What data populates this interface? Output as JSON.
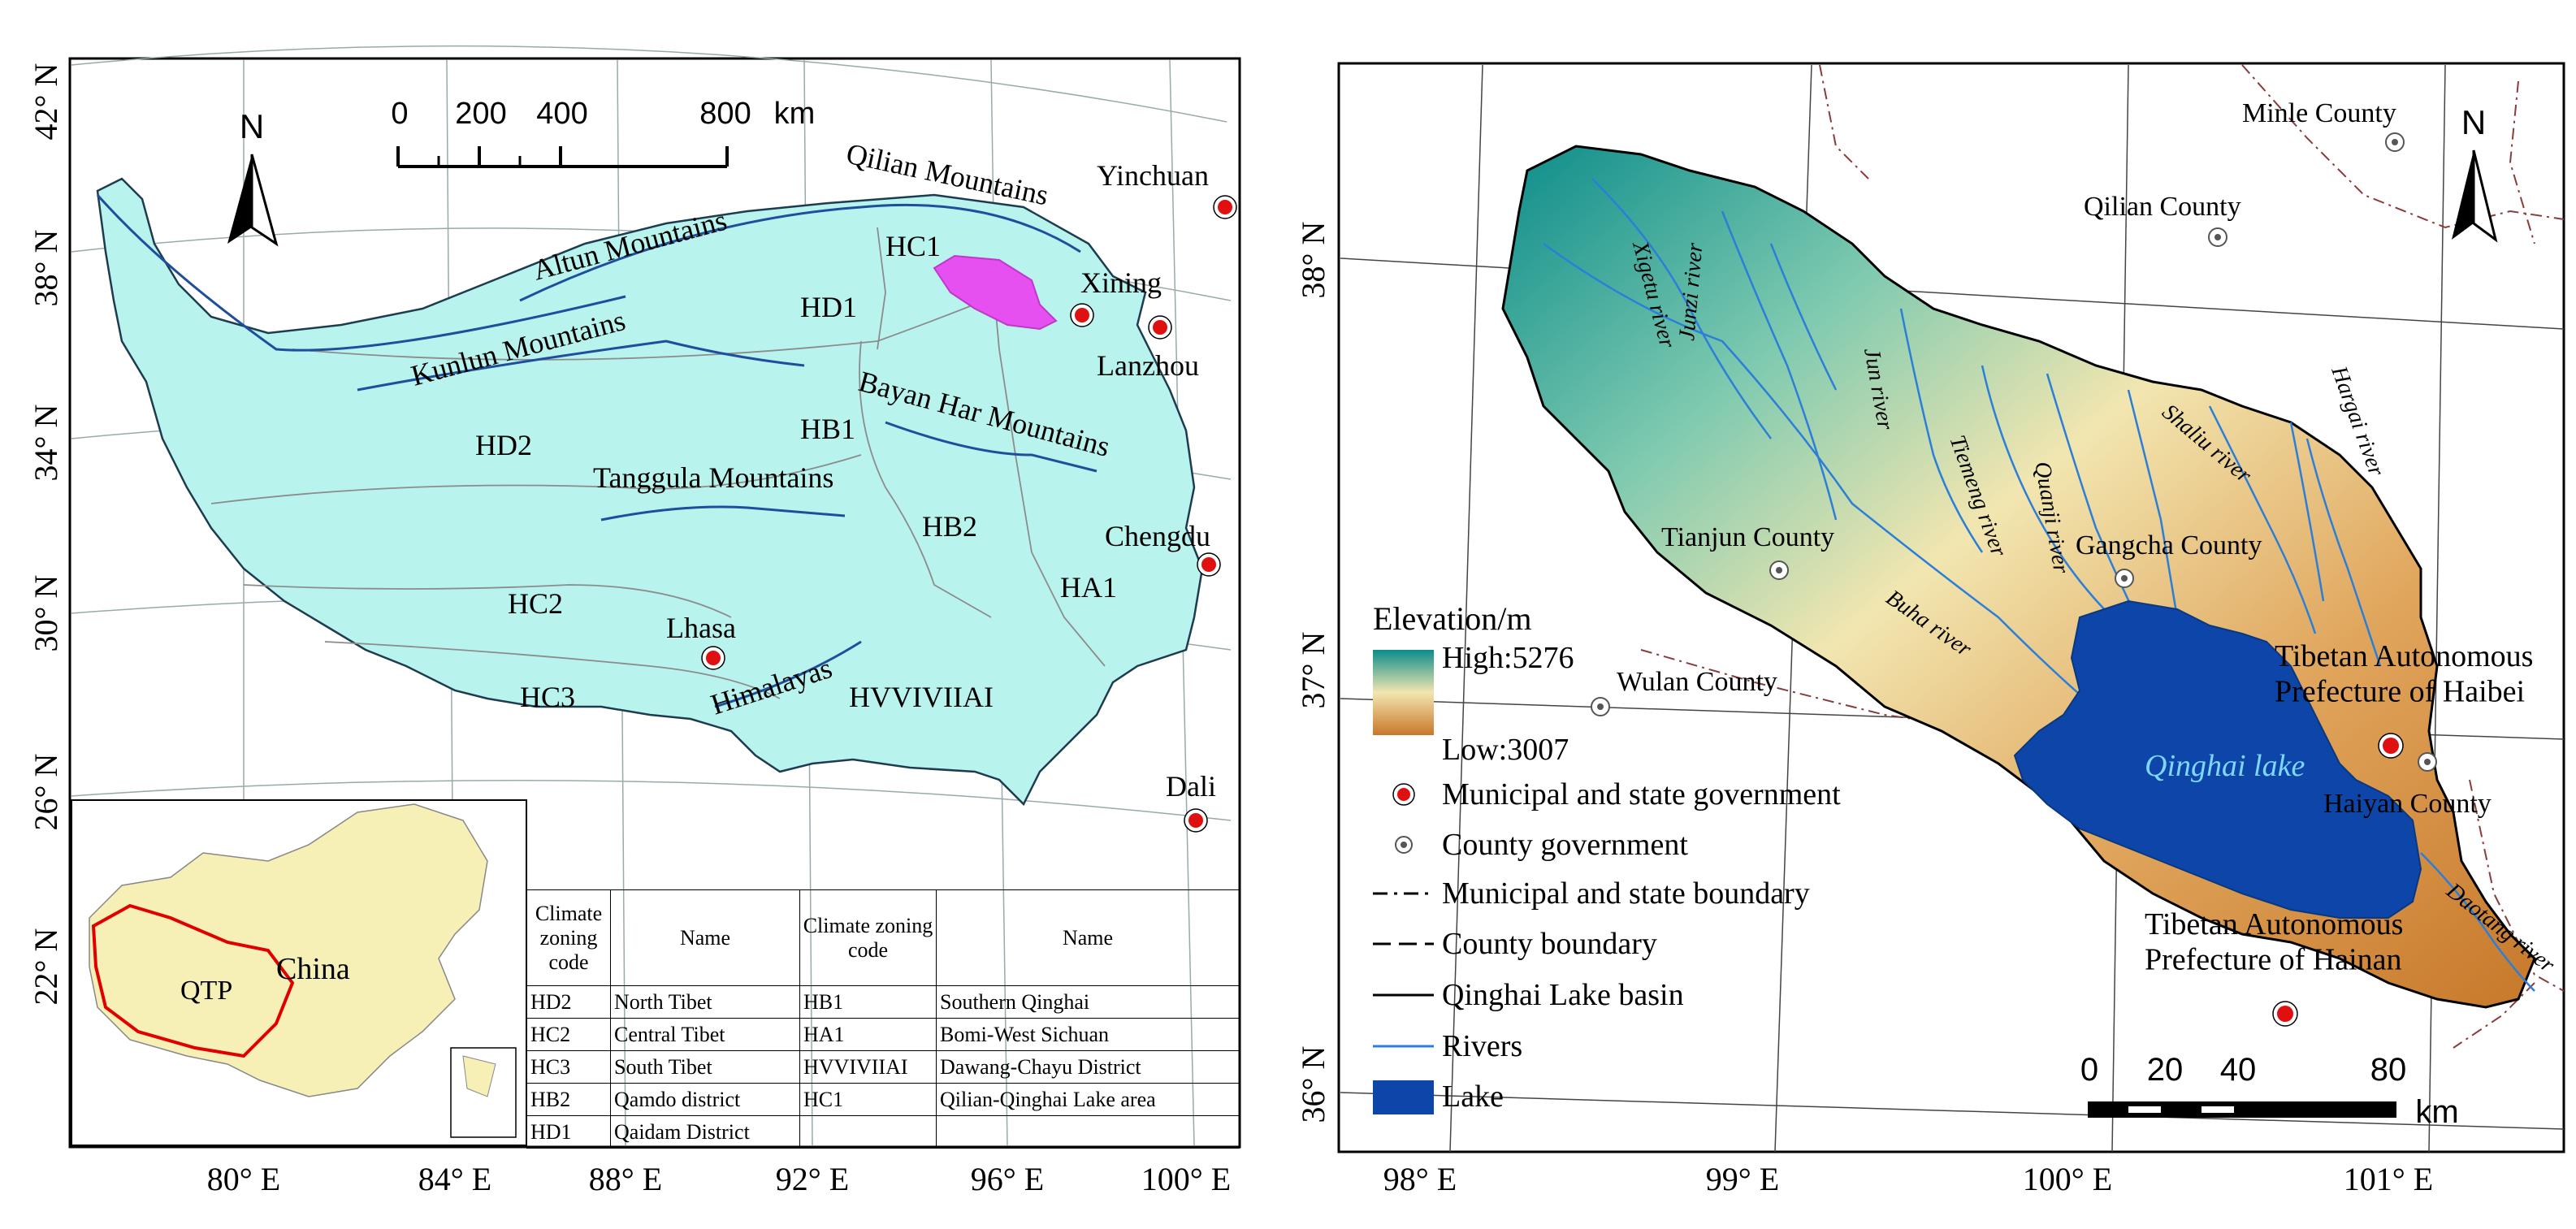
{
  "left_map": {
    "lat_labels": [
      "42° N",
      "38° N",
      "34° N",
      "30° N",
      "26° N",
      "22° N"
    ],
    "lon_labels": [
      "80° E",
      "84° E",
      "88° E",
      "92° E",
      "96° E",
      "100° E"
    ],
    "scalebar": {
      "ticks": [
        "0",
        "200",
        "400",
        "800"
      ],
      "unit": "km"
    },
    "north": "N",
    "mountains": [
      "Qilian Mountains",
      "Altun Mountains",
      "Kunlun Mountains",
      "Bayan Har Mountains",
      "Tanggula Mountains",
      "Himalayas"
    ],
    "zones": [
      "HC1",
      "HD1",
      "HD2",
      "HB1",
      "HB2",
      "HC2",
      "HC3",
      "HA1",
      "HVVIVIIAI"
    ],
    "cities": [
      "Yinchuan",
      "Xining",
      "Lanzhou",
      "Chengdu",
      "Lhasa",
      "Dali"
    ],
    "inset": {
      "qtp": "QTP",
      "country": "China"
    },
    "table": {
      "headers": [
        "Climate zoning code",
        "Name",
        "Climate zoning code",
        "Name"
      ],
      "rows": [
        [
          "HD2",
          "North Tibet",
          "HB1",
          "Southern Qinghai"
        ],
        [
          "HC2",
          "Central Tibet",
          "HA1",
          "Bomi-West Sichuan"
        ],
        [
          "HC3",
          "South Tibet",
          "HVVIVIIAI",
          "Dawang-Chayu District"
        ],
        [
          "HB2",
          "Qamdo district",
          "HC1",
          "Qilian-Qinghai Lake area"
        ],
        [
          "HD1",
          "Qaidam District",
          "",
          ""
        ]
      ]
    }
  },
  "right_map": {
    "lat_labels": [
      "38° N",
      "37° N",
      "36° N"
    ],
    "lon_labels": [
      "98° E",
      "99° E",
      "100° E",
      "101° E"
    ],
    "north": "N",
    "counties": [
      "Minle County",
      "Qilian County",
      "Tianjun County",
      "Gangcha County",
      "Wulan County",
      "Haiyan County"
    ],
    "prefectures": [
      "Tibetan Autonomous\nPrefecture of Haibei",
      "Tibetan Autonomous\nPrefecture of Hainan"
    ],
    "rivers": [
      "Xigetu river",
      "Junzi river",
      "Jun river",
      "Tiemeng river",
      "Quanji river",
      "Shaliu river",
      "Hargai river",
      "Buha river",
      "Daotang river"
    ],
    "lake_label": "Qinghai lake",
    "scalebar": {
      "ticks": [
        "0",
        "20",
        "40",
        "80"
      ],
      "unit": "km"
    },
    "legend": {
      "title": "Elevation/m",
      "high": "High:5276",
      "low": "Low:3007",
      "items": [
        "Municipal and state government",
        "County government",
        "Municipal and state boundary",
        "County boundary",
        "Qinghai Lake basin",
        "Rivers",
        "Lake"
      ]
    },
    "colors": {
      "high": "#0b8c8a",
      "mid": "#f2e6b0",
      "low": "#c7782a",
      "lake": "#0d46a8",
      "river": "#2b7fd8",
      "city": "#e01010"
    }
  }
}
